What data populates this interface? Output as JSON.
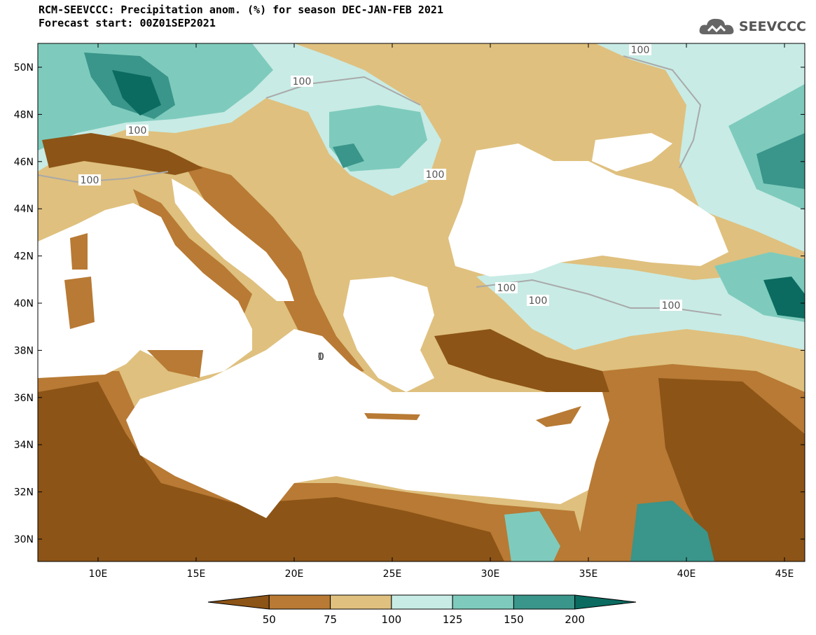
{
  "header": {
    "title_line1": "RCM-SEEVCCC: Precipitation anom. (%) for season DEC-JAN-FEB 2021",
    "title_line2": "Forecast start: 00Z01SEP2021",
    "logo_text": "SEEVCCC"
  },
  "map": {
    "lat_labels": [
      "50N",
      "48N",
      "46N",
      "44N",
      "42N",
      "40N",
      "38N",
      "36N",
      "34N",
      "32N",
      "30N"
    ],
    "lon_labels": [
      "10E",
      "15E",
      "20E",
      "25E",
      "30E",
      "35E",
      "40E",
      "45E"
    ],
    "contour_labels": [
      "100",
      "100",
      "100",
      "100",
      "100",
      "100",
      "100",
      "100",
      "100"
    ]
  },
  "legend": {
    "labels": [
      "50",
      "75",
      "100",
      "125",
      "150",
      "200"
    ],
    "colors": [
      "#8c5416",
      "#b87a34",
      "#dfc07e",
      "#c8ebe5",
      "#7ecbbd",
      "#3a958a",
      "#0b6b60"
    ]
  }
}
